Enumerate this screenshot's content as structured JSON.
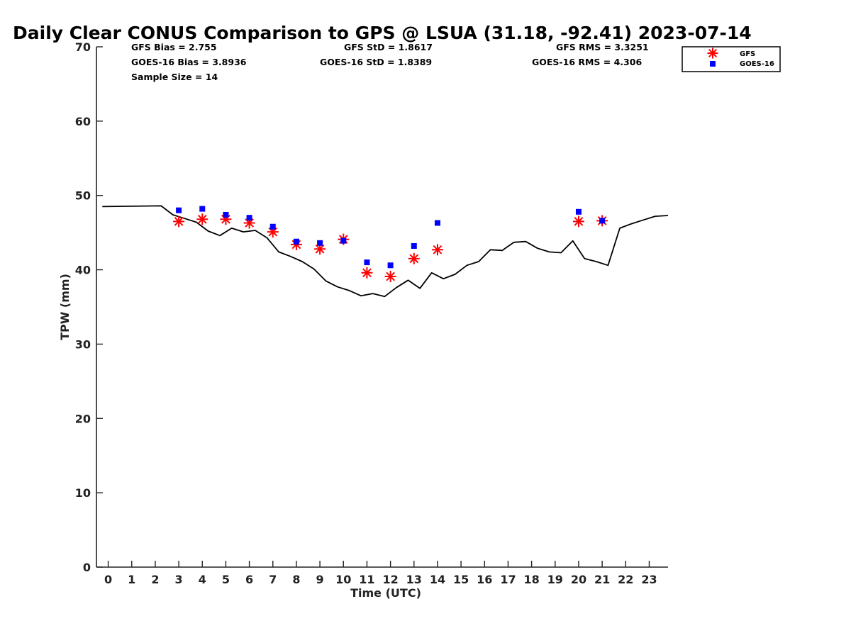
{
  "chart_data": {
    "type": "line",
    "title": "Daily Clear CONUS Comparison to GPS @ LSUA (31.18, -92.41) 2023-07-14",
    "xlabel": "Time (UTC)",
    "ylabel": "TPW (mm)",
    "xlim": [
      -0.5,
      23.8
    ],
    "ylim": [
      0,
      70
    ],
    "xticks": [
      0,
      1,
      2,
      3,
      4,
      5,
      6,
      7,
      8,
      9,
      10,
      11,
      12,
      13,
      14,
      15,
      16,
      17,
      18,
      19,
      20,
      21,
      22,
      23
    ],
    "yticks": [
      0,
      10,
      20,
      30,
      40,
      50,
      60,
      70
    ],
    "grid": false,
    "legend_position": "top-right",
    "stats": {
      "gfs_bias": "GFS Bias = 2.755",
      "gfs_std": "GFS StD = 1.8617",
      "gfs_rms": "GFS RMS = 3.3251",
      "goes_bias": "GOES-16 Bias = 3.8936",
      "goes_std": "GOES-16 StD = 1.8389",
      "goes_rms": "GOES-16 RMS = 4.306",
      "sample_size": "Sample Size = 14"
    },
    "series": [
      {
        "type": "line",
        "color": "#000000",
        "x": [
          -0.25,
          2.25,
          2.75,
          3.25,
          3.75,
          4.25,
          4.75,
          5.25,
          5.75,
          6.25,
          6.75,
          7.25,
          7.75,
          8.25,
          8.75,
          9.25,
          9.75,
          10.25,
          10.75,
          11.25,
          11.75,
          12.25,
          12.75,
          13.25,
          13.75,
          14.25,
          14.75,
          15.25,
          15.75,
          16.25,
          16.75,
          17.25,
          17.75,
          18.25,
          18.75,
          19.25,
          19.75,
          20.25,
          20.75,
          21.25,
          21.75,
          22.25,
          22.75,
          23.25,
          23.8
        ],
        "values": [
          48.5,
          48.6,
          47.4,
          46.9,
          46.4,
          45.2,
          44.6,
          45.6,
          45.1,
          45.3,
          44.3,
          42.4,
          41.8,
          41.1,
          40.1,
          38.5,
          37.7,
          37.2,
          36.5,
          36.8,
          36.4,
          37.6,
          38.6,
          37.5,
          39.6,
          38.8,
          39.4,
          40.6,
          41.1,
          42.7,
          42.6,
          43.7,
          43.8,
          42.9,
          42.4,
          42.3,
          43.9,
          41.5,
          41.1,
          40.6,
          45.6,
          46.2,
          46.7,
          47.2,
          47.3
        ]
      },
      {
        "name": "GFS",
        "type": "scatter",
        "marker": "asterisk",
        "color": "#ff0000",
        "x": [
          3,
          4,
          5,
          6,
          7,
          8,
          9,
          10,
          11,
          12,
          13,
          14,
          20,
          21
        ],
        "values": [
          46.5,
          46.8,
          46.8,
          46.3,
          45.1,
          43.4,
          42.8,
          44.1,
          39.6,
          39.1,
          41.5,
          42.7,
          46.5,
          46.6
        ]
      },
      {
        "name": "GOES-16",
        "type": "scatter",
        "marker": "square",
        "color": "#0000ff",
        "x": [
          3,
          4,
          5,
          6,
          7,
          8,
          9,
          10,
          11,
          12,
          13,
          14,
          20,
          21
        ],
        "values": [
          48.0,
          48.2,
          47.4,
          47.0,
          45.8,
          43.8,
          43.6,
          43.9,
          41.0,
          40.6,
          43.2,
          46.3,
          47.8,
          46.6
        ]
      }
    ]
  }
}
